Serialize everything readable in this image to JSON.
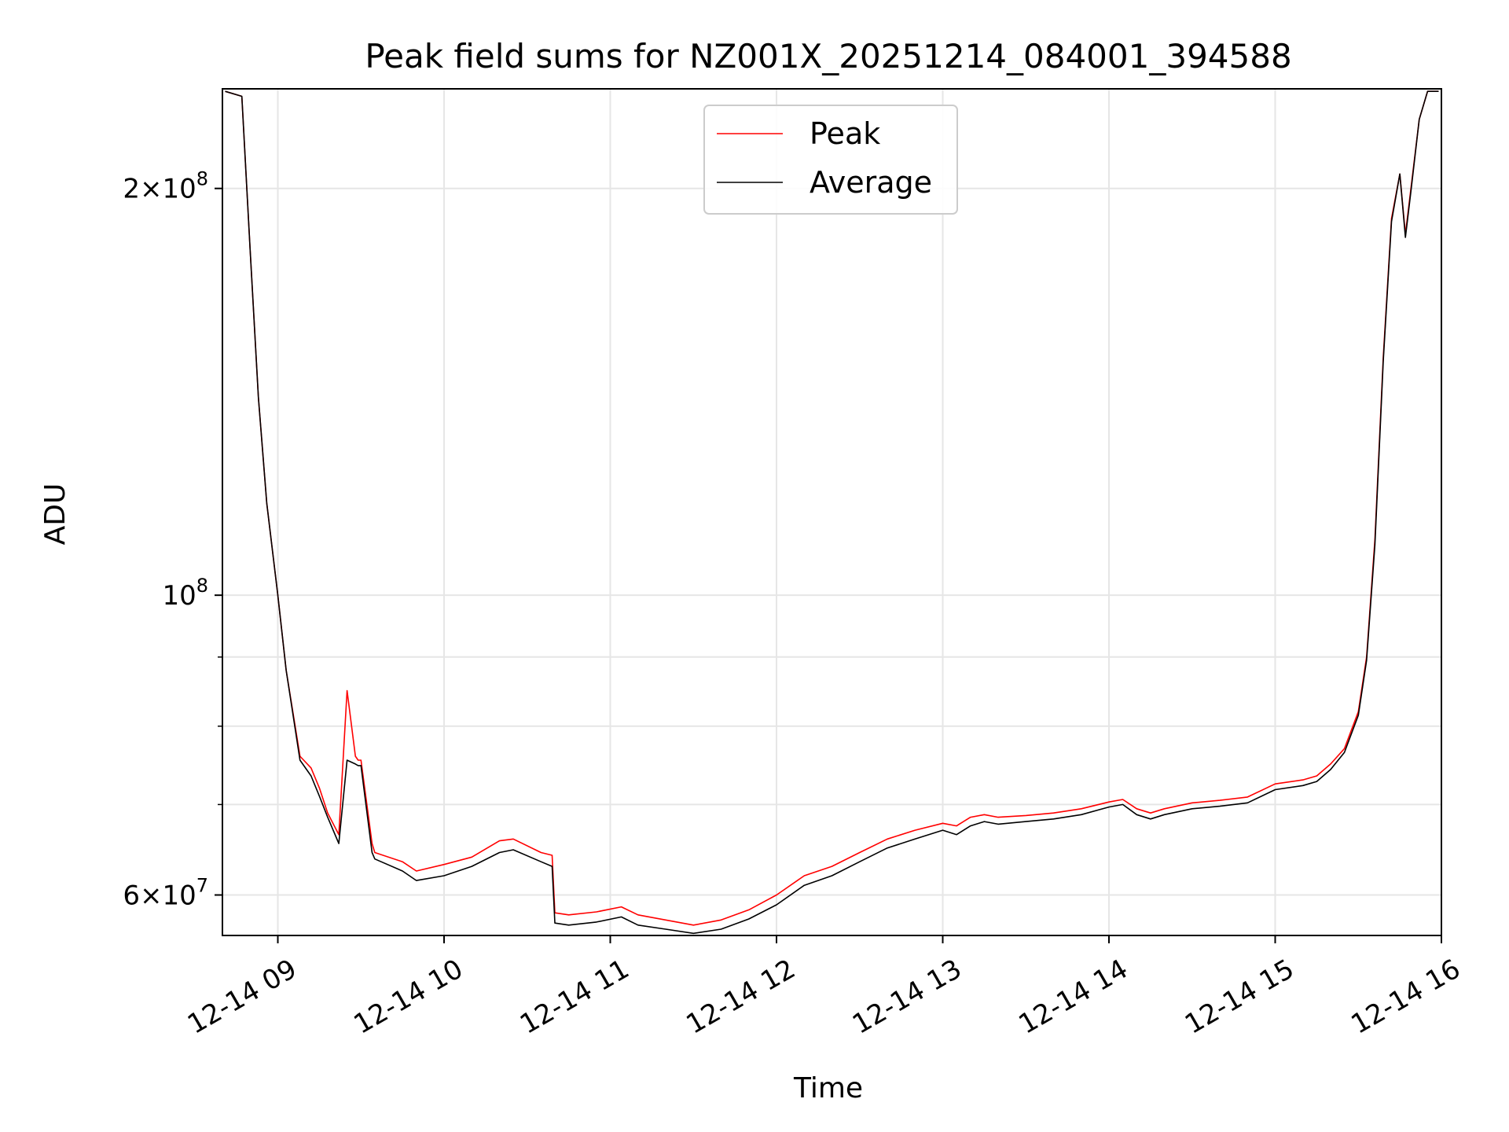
{
  "chart_data": {
    "type": "line",
    "title": "Peak field sums for NZ001X_20251214_084001_394588",
    "xlabel": "Time",
    "ylabel": "ADU",
    "yscale": "log",
    "grid": true,
    "legend_position": "top-center",
    "xlim": [
      "2025-12-14T08:40",
      "2025-12-14T16:00"
    ],
    "ylim": [
      56000000,
      237000000
    ],
    "x_ticks": [
      {
        "value": "2025-12-14T09:00",
        "label": "12-14 09"
      },
      {
        "value": "2025-12-14T10:00",
        "label": "12-14 10"
      },
      {
        "value": "2025-12-14T11:00",
        "label": "12-14 11"
      },
      {
        "value": "2025-12-14T12:00",
        "label": "12-14 12"
      },
      {
        "value": "2025-12-14T13:00",
        "label": "12-14 13"
      },
      {
        "value": "2025-12-14T14:00",
        "label": "12-14 14"
      },
      {
        "value": "2025-12-14T15:00",
        "label": "12-14 15"
      },
      {
        "value": "2025-12-14T16:00",
        "label": "12-14 16"
      }
    ],
    "y_major_ticks": [
      {
        "value": 60000000,
        "mantissa": "6",
        "exponent": "7"
      },
      {
        "value": 100000000,
        "mantissa": "",
        "exponent": "8"
      },
      {
        "value": 200000000,
        "mantissa": "2",
        "exponent": "8"
      }
    ],
    "y_minor_ticks": [
      70000000,
      80000000,
      90000000
    ],
    "series": [
      {
        "name": "Peak",
        "color": "#ff0000",
        "x": [
          "2025-12-14T08:41",
          "2025-12-14T08:47",
          "2025-12-14T08:50",
          "2025-12-14T08:53",
          "2025-12-14T08:56",
          "2025-12-14T09:00",
          "2025-12-14T09:03",
          "2025-12-14T09:08",
          "2025-12-14T09:12",
          "2025-12-14T09:15",
          "2025-12-14T09:18",
          "2025-12-14T09:22",
          "2025-12-14T09:25",
          "2025-12-14T09:28",
          "2025-12-14T09:29",
          "2025-12-14T09:30",
          "2025-12-14T09:34",
          "2025-12-14T09:35",
          "2025-12-14T09:45",
          "2025-12-14T09:50",
          "2025-12-14T10:00",
          "2025-12-14T10:10",
          "2025-12-14T10:20",
          "2025-12-14T10:25",
          "2025-12-14T10:35",
          "2025-12-14T10:39",
          "2025-12-14T10:40",
          "2025-12-14T10:45",
          "2025-12-14T10:55",
          "2025-12-14T11:04",
          "2025-12-14T11:10",
          "2025-12-14T11:20",
          "2025-12-14T11:30",
          "2025-12-14T11:40",
          "2025-12-14T11:50",
          "2025-12-14T12:00",
          "2025-12-14T12:10",
          "2025-12-14T12:20",
          "2025-12-14T12:30",
          "2025-12-14T12:40",
          "2025-12-14T12:50",
          "2025-12-14T13:00",
          "2025-12-14T13:05",
          "2025-12-14T13:10",
          "2025-12-14T13:15",
          "2025-12-14T13:20",
          "2025-12-14T13:30",
          "2025-12-14T13:40",
          "2025-12-14T13:50",
          "2025-12-14T14:00",
          "2025-12-14T14:05",
          "2025-12-14T14:10",
          "2025-12-14T14:15",
          "2025-12-14T14:20",
          "2025-12-14T14:30",
          "2025-12-14T14:40",
          "2025-12-14T14:50",
          "2025-12-14T15:00",
          "2025-12-14T15:10",
          "2025-12-14T15:15",
          "2025-12-14T15:20",
          "2025-12-14T15:25",
          "2025-12-14T15:30",
          "2025-12-14T15:33",
          "2025-12-14T15:36",
          "2025-12-14T15:39",
          "2025-12-14T15:42",
          "2025-12-14T15:45",
          "2025-12-14T15:47",
          "2025-12-14T15:49",
          "2025-12-14T15:52",
          "2025-12-14T15:55",
          "2025-12-14T15:59"
        ],
        "y": [
          236000000,
          234000000,
          180000000,
          140000000,
          117000000,
          100000000,
          88000000,
          76000000,
          74500000,
          72000000,
          69000000,
          66500000,
          85000000,
          76000000,
          75500000,
          75500000,
          65500000,
          64500000,
          63500000,
          62500000,
          63200000,
          64000000,
          65800000,
          66000000,
          64500000,
          64200000,
          58200000,
          58000000,
          58300000,
          58800000,
          58000000,
          57500000,
          57000000,
          57500000,
          58500000,
          60000000,
          62000000,
          63000000,
          64500000,
          66000000,
          67000000,
          67800000,
          67500000,
          68500000,
          68800000,
          68500000,
          68700000,
          69000000,
          69500000,
          70300000,
          70600000,
          69500000,
          69000000,
          69500000,
          70200000,
          70500000,
          70900000,
          72500000,
          73000000,
          73500000,
          75000000,
          77000000,
          82000000,
          90000000,
          110000000,
          150000000,
          190000000,
          205000000,
          185000000,
          200000000,
          225000000,
          236000000,
          236000000
        ]
      },
      {
        "name": "Average",
        "color": "#000000",
        "x": [
          "2025-12-14T08:41",
          "2025-12-14T08:47",
          "2025-12-14T08:50",
          "2025-12-14T08:53",
          "2025-12-14T08:56",
          "2025-12-14T09:00",
          "2025-12-14T09:03",
          "2025-12-14T09:08",
          "2025-12-14T09:12",
          "2025-12-14T09:15",
          "2025-12-14T09:18",
          "2025-12-14T09:22",
          "2025-12-14T09:25",
          "2025-12-14T09:28",
          "2025-12-14T09:29",
          "2025-12-14T09:30",
          "2025-12-14T09:34",
          "2025-12-14T09:35",
          "2025-12-14T09:45",
          "2025-12-14T09:50",
          "2025-12-14T10:00",
          "2025-12-14T10:10",
          "2025-12-14T10:20",
          "2025-12-14T10:25",
          "2025-12-14T10:35",
          "2025-12-14T10:39",
          "2025-12-14T10:40",
          "2025-12-14T10:45",
          "2025-12-14T10:55",
          "2025-12-14T11:04",
          "2025-12-14T11:10",
          "2025-12-14T11:20",
          "2025-12-14T11:30",
          "2025-12-14T11:40",
          "2025-12-14T11:50",
          "2025-12-14T12:00",
          "2025-12-14T12:10",
          "2025-12-14T12:20",
          "2025-12-14T12:30",
          "2025-12-14T12:40",
          "2025-12-14T12:50",
          "2025-12-14T13:00",
          "2025-12-14T13:05",
          "2025-12-14T13:10",
          "2025-12-14T13:15",
          "2025-12-14T13:20",
          "2025-12-14T13:30",
          "2025-12-14T13:40",
          "2025-12-14T13:50",
          "2025-12-14T14:00",
          "2025-12-14T14:05",
          "2025-12-14T14:10",
          "2025-12-14T14:15",
          "2025-12-14T14:20",
          "2025-12-14T14:30",
          "2025-12-14T14:40",
          "2025-12-14T14:50",
          "2025-12-14T15:00",
          "2025-12-14T15:10",
          "2025-12-14T15:15",
          "2025-12-14T15:20",
          "2025-12-14T15:25",
          "2025-12-14T15:30",
          "2025-12-14T15:33",
          "2025-12-14T15:36",
          "2025-12-14T15:39",
          "2025-12-14T15:42",
          "2025-12-14T15:45",
          "2025-12-14T15:47",
          "2025-12-14T15:49",
          "2025-12-14T15:52",
          "2025-12-14T15:55",
          "2025-12-14T15:59"
        ],
        "y": [
          236000000,
          234000000,
          180000000,
          140000000,
          117000000,
          100000000,
          88000000,
          75500000,
          73500000,
          71000000,
          68500000,
          65500000,
          75500000,
          75000000,
          74800000,
          74800000,
          64500000,
          63800000,
          62500000,
          61500000,
          62000000,
          63000000,
          64500000,
          64800000,
          63500000,
          63000000,
          57200000,
          57000000,
          57300000,
          57800000,
          57000000,
          56600000,
          56200000,
          56600000,
          57600000,
          59000000,
          61000000,
          62000000,
          63500000,
          65000000,
          66000000,
          67000000,
          66500000,
          67500000,
          68000000,
          67700000,
          68000000,
          68300000,
          68800000,
          69700000,
          70000000,
          68800000,
          68300000,
          68800000,
          69500000,
          69800000,
          70200000,
          71800000,
          72300000,
          72800000,
          74300000,
          76500000,
          81500000,
          89500000,
          109000000,
          149000000,
          189000000,
          205000000,
          184000000,
          199000000,
          225000000,
          236000000,
          236000000
        ]
      }
    ]
  }
}
